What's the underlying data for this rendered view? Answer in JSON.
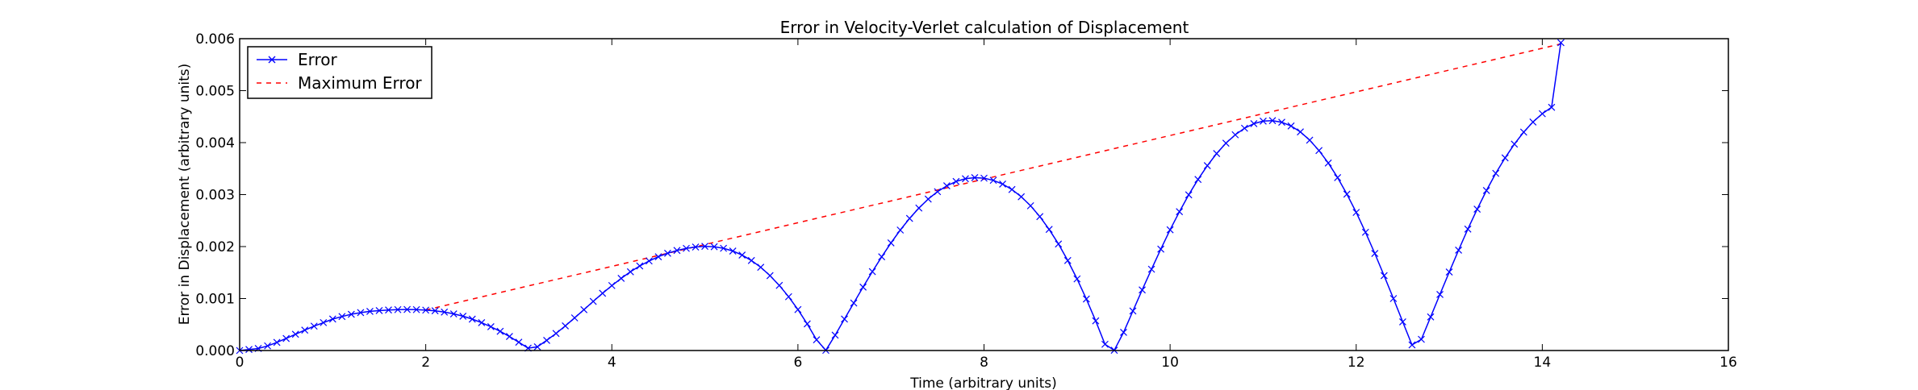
{
  "chart_data": {
    "type": "line",
    "title": "Error in Velocity-Verlet calculation of Displacement",
    "xlabel": "Time (arbitrary units)",
    "ylabel": "Error in Displacement (arbitrary units)",
    "xlim": [
      0,
      16
    ],
    "ylim": [
      0,
      0.006
    ],
    "xticks": [
      0,
      2,
      4,
      6,
      8,
      10,
      12,
      14,
      16
    ],
    "xtick_labels": [
      "0",
      "2",
      "4",
      "6",
      "8",
      "10",
      "12",
      "14",
      "16"
    ],
    "yticks": [
      0,
      0.001,
      0.002,
      0.003,
      0.004,
      0.005,
      0.006
    ],
    "ytick_labels": [
      "0.000",
      "0.001",
      "0.002",
      "0.003",
      "0.004",
      "0.005",
      "0.006"
    ],
    "grid": false,
    "legend_position": "top-left",
    "series": [
      {
        "name": "Error",
        "style": "solid line with x markers",
        "color": "#0000ff",
        "x": [
          0.0,
          0.1,
          0.2,
          0.3,
          0.4,
          0.5,
          0.6,
          0.7,
          0.8,
          0.9,
          1.0,
          1.1,
          1.2,
          1.3,
          1.4,
          1.5,
          1.6,
          1.7,
          1.8,
          1.9,
          2.0,
          2.1,
          2.2,
          2.3,
          2.4,
          2.5,
          2.6,
          2.7,
          2.8,
          2.9,
          3.0,
          3.1,
          3.2,
          3.3,
          3.4,
          3.5,
          3.6,
          3.7,
          3.8,
          3.9,
          4.0,
          4.1,
          4.2,
          4.3,
          4.4,
          4.5,
          4.6,
          4.7,
          4.8,
          4.9,
          5.0,
          5.1,
          5.2,
          5.3,
          5.4,
          5.5,
          5.6,
          5.7,
          5.8,
          5.9,
          6.0,
          6.1,
          6.2,
          6.3,
          6.4,
          6.5,
          6.6,
          6.7,
          6.8,
          6.9,
          7.0,
          7.1,
          7.2,
          7.3,
          7.4,
          7.5,
          7.6,
          7.7,
          7.8,
          7.9,
          8.0,
          8.1,
          8.2,
          8.3,
          8.4,
          8.5,
          8.6,
          8.7,
          8.8,
          8.9,
          9.0,
          9.1,
          9.2,
          9.3,
          9.4,
          9.5,
          9.6,
          9.7,
          9.8,
          9.9,
          10.0,
          10.1,
          10.2,
          10.3,
          10.4,
          10.5,
          10.6,
          10.7,
          10.8,
          10.9,
          11.0,
          11.1,
          11.2,
          11.3,
          11.4,
          11.5,
          11.6,
          11.7,
          11.8,
          11.9,
          12.0,
          12.1,
          12.2,
          12.3,
          12.4,
          12.5,
          12.6,
          12.7,
          12.8,
          12.9,
          13.0,
          13.1,
          13.2,
          13.3,
          13.4,
          13.5,
          13.6,
          13.7,
          13.8,
          13.9,
          14.0,
          14.1,
          14.2
        ],
        "y": [
          0.0,
          2e-05,
          3.9e-05,
          8.9e-05,
          0.000156,
          0.000232,
          0.000313,
          0.000393,
          0.000469,
          0.000537,
          0.000605,
          0.000654,
          0.000697,
          0.000729,
          0.000753,
          0.000768,
          0.00078,
          0.000787,
          0.000789,
          0.000787,
          0.000777,
          0.000764,
          0.000739,
          0.000705,
          0.00066,
          0.000604,
          0.000536,
          0.000458,
          0.000369,
          0.00027,
          0.00016,
          4.5e-05,
          7.1e-05,
          0.000195,
          0.000329,
          0.000474,
          0.000628,
          0.000786,
          0.000945,
          0.001101,
          0.00125,
          0.001388,
          0.001515,
          0.001627,
          0.001723,
          0.001804,
          0.001871,
          0.001925,
          0.001965,
          0.001992,
          0.002005,
          0.001997,
          0.001967,
          0.001914,
          0.001836,
          0.001732,
          0.001601,
          0.001441,
          0.001253,
          0.001035,
          0.000788,
          0.000512,
          0.000207,
          4e-06,
          0.000295,
          0.000605,
          0.000914,
          0.00122,
          0.001518,
          0.001803,
          0.002071,
          0.002318,
          0.002542,
          0.002741,
          0.002913,
          0.003056,
          0.003169,
          0.003253,
          0.003305,
          0.003326,
          0.003316,
          0.003275,
          0.003203,
          0.003098,
          0.002959,
          0.002785,
          0.002576,
          0.002331,
          0.002049,
          0.001731,
          0.001378,
          0.000991,
          0.000571,
          0.00012,
          5e-06,
          0.00035,
          0.00076,
          0.001166,
          0.001564,
          0.001951,
          0.002322,
          0.002671,
          0.002995,
          0.003291,
          0.003557,
          0.00379,
          0.003989,
          0.004151,
          0.004277,
          0.004365,
          0.004414,
          0.004424,
          0.004393,
          0.004321,
          0.004206,
          0.004048,
          0.003848,
          0.003607,
          0.003327,
          0.003009,
          0.002657,
          0.002275,
          0.001868,
          0.001441,
          0.001,
          0.000552,
          0.000108,
          0.000215,
          0.000646,
          0.001079,
          0.00151,
          0.001931,
          0.002336,
          0.00272,
          0.003079,
          0.003409,
          0.003707,
          0.003972,
          0.004202,
          0.004397,
          0.004556,
          0.00468,
          0.005924
        ]
      },
      {
        "name": "Maximum Error",
        "style": "dashed line",
        "color": "#ff0000",
        "x": [
          2.0,
          14.2
        ],
        "y": [
          0.00078,
          0.0059
        ]
      }
    ]
  }
}
